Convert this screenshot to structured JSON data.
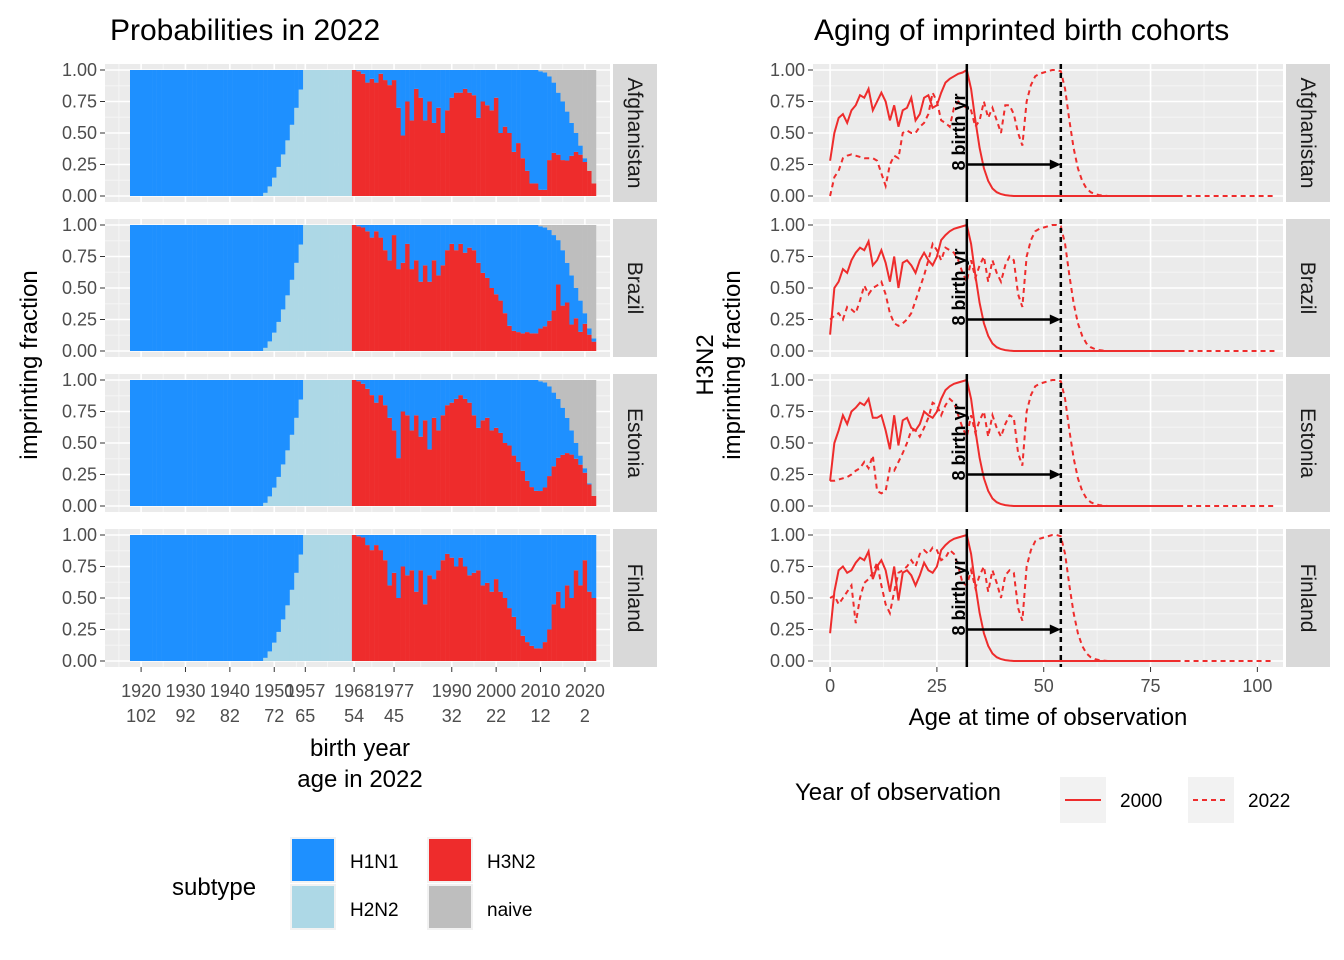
{
  "chart_data": [
    {
      "type": "bar",
      "title": "Probabilities in 2022",
      "xlabel": "birth year",
      "xlabel2": "age in 2022",
      "ylabel": "imprinting fraction",
      "ylim": [
        0,
        1
      ],
      "y_ticks": [
        "0.00",
        "0.25",
        "0.50",
        "0.75",
        "1.00"
      ],
      "x_tick_years": [
        "1920",
        "1930",
        "1940",
        "1950",
        "1957",
        "1968",
        "1977",
        "1990",
        "2000",
        "2010",
        "2020"
      ],
      "x_tick_ages": [
        "102",
        "92",
        "82",
        "72",
        "65",
        "54",
        "45",
        "32",
        "22",
        "12",
        "2"
      ],
      "stacked": true,
      "legend_title": "subtype",
      "legend_position": "bottom",
      "series": [
        {
          "name": "H1N1",
          "color": "#1e90ff"
        },
        {
          "name": "H2N2",
          "color": "#add8e6"
        },
        {
          "name": "H3N2",
          "color": "#ee2c2c"
        },
        {
          "name": "naive",
          "color": "#bebebe"
        }
      ],
      "panels": [
        {
          "name": "Afghanistan",
          "h3n2_share_of_imprinted_1968_2022": [
            1,
            0.99,
            0.97,
            0.9,
            0.93,
            0.9,
            0.97,
            0.92,
            0.88,
            0.92,
            0.7,
            0.48,
            0.75,
            0.6,
            0.85,
            0.78,
            0.6,
            0.75,
            0.58,
            0.7,
            0.5,
            0.68,
            0.78,
            0.82,
            0.82,
            0.85,
            0.82,
            0.8,
            0.62,
            0.75,
            0.72,
            0.68,
            0.78,
            0.5,
            0.55,
            0.5,
            0.35,
            0.42,
            0.3,
            0.2,
            0.1,
            0.1,
            0.05,
            0.05,
            0.3,
            0.38,
            0.4,
            0.38,
            0.42,
            0.55,
            0.7,
            0.82,
            0.9,
            1,
            1
          ],
          "naive_fraction_2010_2022": [
            0.01,
            0.02,
            0.05,
            0.1,
            0.18,
            0.25,
            0.33,
            0.42,
            0.5,
            0.6,
            0.7,
            0.8,
            0.9
          ]
        },
        {
          "name": "Brazil",
          "h3n2_share_of_imprinted_1968_2022": [
            1,
            0.99,
            0.98,
            0.95,
            0.9,
            0.95,
            0.9,
            0.8,
            0.72,
            0.92,
            0.65,
            0.7,
            0.85,
            0.65,
            0.72,
            0.55,
            0.68,
            0.55,
            0.72,
            0.6,
            0.68,
            0.8,
            0.85,
            0.8,
            0.85,
            0.78,
            0.82,
            0.8,
            0.7,
            0.62,
            0.58,
            0.5,
            0.45,
            0.4,
            0.3,
            0.2,
            0.16,
            0.15,
            0.14,
            0.15,
            0.14,
            0.14,
            0.18,
            0.2,
            0.25,
            0.35,
            0.6,
            0.45,
            0.55,
            0.35,
            0.52,
            0.38,
            0.72,
            0.72,
            0.74
          ],
          "naive_fraction_2010_2022": [
            0.01,
            0.02,
            0.04,
            0.08,
            0.12,
            0.2,
            0.3,
            0.4,
            0.5,
            0.6,
            0.7,
            0.82,
            0.9
          ]
        },
        {
          "name": "Estonia",
          "h3n2_share_of_imprinted_1968_2022": [
            1,
            0.99,
            0.97,
            0.93,
            0.88,
            0.82,
            0.88,
            0.8,
            0.7,
            0.6,
            0.38,
            0.75,
            0.72,
            0.6,
            0.72,
            0.55,
            0.68,
            0.45,
            0.7,
            0.6,
            0.72,
            0.8,
            0.82,
            0.85,
            0.88,
            0.85,
            0.82,
            0.72,
            0.62,
            0.68,
            0.7,
            0.6,
            0.62,
            0.58,
            0.5,
            0.48,
            0.4,
            0.35,
            0.28,
            0.2,
            0.15,
            0.12,
            0.12,
            0.15,
            0.25,
            0.35,
            0.45,
            0.52,
            0.6,
            0.68,
            0.75,
            0.82,
            0.88,
            0.95,
            1
          ],
          "naive_fraction_2010_2022": [
            0.01,
            0.02,
            0.05,
            0.1,
            0.15,
            0.22,
            0.3,
            0.4,
            0.5,
            0.6,
            0.7,
            0.82,
            0.92
          ]
        },
        {
          "name": "Finland",
          "h3n2_share_of_imprinted_1968_2022": [
            1,
            0.99,
            0.98,
            0.92,
            0.88,
            0.92,
            0.88,
            0.8,
            0.6,
            0.7,
            0.5,
            0.75,
            0.68,
            0.72,
            0.55,
            0.72,
            0.45,
            0.68,
            0.65,
            0.72,
            0.8,
            0.85,
            0.82,
            0.75,
            0.82,
            0.75,
            0.68,
            0.7,
            0.72,
            0.6,
            0.62,
            0.55,
            0.65,
            0.55,
            0.5,
            0.42,
            0.35,
            0.25,
            0.2,
            0.15,
            0.12,
            0.1,
            0.1,
            0.15,
            0.25,
            0.45,
            0.55,
            0.42,
            0.6,
            0.5,
            0.72,
            0.6,
            0.8,
            0.55,
            0.5
          ],
          "naive_fraction_2010_2022": [
            0,
            0,
            0,
            0,
            0,
            0,
            0,
            0,
            0,
            0,
            0,
            0,
            0
          ]
        }
      ]
    },
    {
      "type": "line",
      "title": "Aging of imprinted birth cohorts",
      "xlabel": "Age at time of observation",
      "ylabel": "H3N2",
      "ylabel2": "imprinting fraction",
      "xlim": [
        -4,
        106
      ],
      "ylim": [
        0,
        1
      ],
      "x_ticks": [
        "0",
        "25",
        "50",
        "75",
        "100"
      ],
      "y_ticks": [
        "0.00",
        "0.25",
        "0.50",
        "0.75",
        "1.00"
      ],
      "annotation": "8 birth yr",
      "vlines": [
        32,
        54
      ],
      "arrow": {
        "from": 32,
        "to": 54,
        "y": 0.25
      },
      "legend_title": "Year of observation",
      "legend_position": "bottom",
      "series": [
        {
          "name": "2000",
          "style": "solid",
          "color": "#ee2c2c"
        },
        {
          "name": "2022",
          "style": "dashed",
          "color": "#ee2c2c"
        }
      ],
      "panels": [
        {
          "name": "Afghanistan",
          "y_2000_age0_32": [
            0.28,
            0.5,
            0.62,
            0.65,
            0.58,
            0.68,
            0.72,
            0.8,
            0.78,
            0.85,
            0.68,
            0.75,
            0.82,
            0.75,
            0.6,
            0.72,
            0.55,
            0.68,
            0.7,
            0.78,
            0.6,
            0.65,
            0.78,
            0.8,
            0.7,
            0.72,
            0.82,
            0.9,
            0.93,
            0.95,
            0.97,
            0.98,
            1
          ],
          "y_2022_age0_54": [
            0,
            0.15,
            0.2,
            0.3,
            0.32,
            0.33,
            0.32,
            0.31,
            0.3,
            0.3,
            0.3,
            0.28,
            0.18,
            0.08,
            0.25,
            0.32,
            0.3,
            0.5,
            0.52,
            0.5,
            0.5,
            0.55,
            0.58,
            0.65,
            0.82,
            0.75,
            0.6,
            0.58,
            0.55,
            0.7,
            0.75,
            0.72,
            0.7,
            0.68,
            0.55,
            0.6,
            0.75,
            0.62,
            0.7,
            0.6,
            0.5,
            0.72,
            0.72,
            0.65,
            0.5,
            0.4,
            0.75,
            0.88,
            0.95,
            0.97,
            0.98,
            0.99,
            1,
            1,
            0.99
          ]
        },
        {
          "name": "Brazil",
          "y_2000_age0_32": [
            0.13,
            0.5,
            0.55,
            0.65,
            0.62,
            0.72,
            0.78,
            0.82,
            0.8,
            0.87,
            0.68,
            0.72,
            0.8,
            0.7,
            0.55,
            0.75,
            0.5,
            0.7,
            0.72,
            0.68,
            0.62,
            0.72,
            0.78,
            0.72,
            0.68,
            0.75,
            0.88,
            0.92,
            0.95,
            0.97,
            0.98,
            0.99,
            1
          ],
          "y_2022_age0_54": [
            0.25,
            0.28,
            0.3,
            0.25,
            0.35,
            0.33,
            0.3,
            0.4,
            0.52,
            0.45,
            0.5,
            0.52,
            0.55,
            0.45,
            0.3,
            0.22,
            0.2,
            0.22,
            0.25,
            0.3,
            0.4,
            0.5,
            0.6,
            0.72,
            0.85,
            0.8,
            0.72,
            0.82,
            0.8,
            0.78,
            0.72,
            0.62,
            0.55,
            0.72,
            0.58,
            0.68,
            0.75,
            0.55,
            0.72,
            0.62,
            0.55,
            0.68,
            0.75,
            0.72,
            0.45,
            0.35,
            0.75,
            0.88,
            0.95,
            0.97,
            0.98,
            0.99,
            1,
            1,
            0.99
          ]
        },
        {
          "name": "Estonia",
          "y_2000_age0_32": [
            0.2,
            0.5,
            0.6,
            0.72,
            0.65,
            0.75,
            0.78,
            0.82,
            0.8,
            0.85,
            0.7,
            0.7,
            0.72,
            0.6,
            0.45,
            0.72,
            0.48,
            0.68,
            0.7,
            0.62,
            0.6,
            0.65,
            0.75,
            0.72,
            0.7,
            0.75,
            0.85,
            0.92,
            0.95,
            0.97,
            0.98,
            0.99,
            1
          ],
          "y_2022_age0_54": [
            0.2,
            0.2,
            0.21,
            0.22,
            0.23,
            0.25,
            0.28,
            0.3,
            0.35,
            0.3,
            0.4,
            0.12,
            0.1,
            0.12,
            0.3,
            0.28,
            0.35,
            0.42,
            0.5,
            0.6,
            0.6,
            0.55,
            0.62,
            0.7,
            0.82,
            0.8,
            0.72,
            0.8,
            0.85,
            0.82,
            0.72,
            0.62,
            0.55,
            0.72,
            0.58,
            0.68,
            0.75,
            0.55,
            0.72,
            0.62,
            0.55,
            0.65,
            0.72,
            0.7,
            0.42,
            0.32,
            0.75,
            0.88,
            0.95,
            0.97,
            0.98,
            0.99,
            1,
            1,
            0.99
          ]
        },
        {
          "name": "Finland",
          "y_2000_age0_32": [
            0.22,
            0.55,
            0.72,
            0.75,
            0.7,
            0.72,
            0.78,
            0.82,
            0.8,
            0.87,
            0.65,
            0.75,
            0.8,
            0.72,
            0.55,
            0.75,
            0.48,
            0.7,
            0.72,
            0.68,
            0.6,
            0.68,
            0.78,
            0.72,
            0.7,
            0.75,
            0.88,
            0.92,
            0.95,
            0.97,
            0.98,
            0.99,
            1
          ],
          "y_2022_age0_54": [
            0.5,
            0.52,
            0.45,
            0.5,
            0.55,
            0.6,
            0.3,
            0.5,
            0.62,
            0.65,
            0.7,
            0.78,
            0.6,
            0.45,
            0.38,
            0.55,
            0.7,
            0.72,
            0.75,
            0.8,
            0.75,
            0.85,
            0.88,
            0.85,
            0.9,
            0.88,
            0.8,
            0.82,
            0.88,
            0.85,
            0.75,
            0.62,
            0.6,
            0.72,
            0.58,
            0.68,
            0.75,
            0.55,
            0.72,
            0.62,
            0.5,
            0.68,
            0.72,
            0.7,
            0.42,
            0.32,
            0.75,
            0.88,
            0.95,
            0.97,
            0.98,
            0.99,
            1,
            1,
            0.99
          ]
        }
      ]
    }
  ]
}
